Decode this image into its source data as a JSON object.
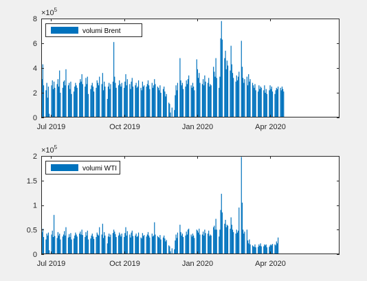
{
  "colors": {
    "figure_background": "#f0f0f0",
    "axes_background": "#ffffff",
    "bar": "#0072bd",
    "axis": "#262626"
  },
  "chart_data": [
    {
      "type": "bar",
      "legend": [
        "volumi Brent"
      ],
      "legend_location": "top-left",
      "y_exponent_label": "×10",
      "y_exponent_power": "5",
      "ylim": [
        0,
        8
      ],
      "yticks": [
        0,
        2,
        4,
        6,
        8
      ],
      "ytick_labels": [
        "0",
        "2",
        "4",
        "6",
        "8"
      ],
      "xlim": [
        "2019-06-19",
        "2020-06-27"
      ],
      "xticks": [
        "2019-07-01",
        "2019-10-01",
        "2020-01-01",
        "2020-04-01"
      ],
      "xtick_labels": [
        "Jul 2019",
        "Oct 2019",
        "Jan 2020",
        "Apr 2020"
      ],
      "grid": false,
      "series": [
        {
          "x_start": "2019-06-20",
          "x_step_days": 1,
          "values": [
            3.1,
            4.3,
            2.6,
            0,
            0,
            2.2,
            2.8,
            1.6,
            2.5,
            0.3,
            0,
            0,
            2.6,
            3.0,
            2.3,
            2.9,
            2.4,
            0,
            0,
            2.7,
            3.1,
            2.5,
            3.8,
            2.0,
            0,
            0,
            2.4,
            2.9,
            3.0,
            2.6,
            3.9,
            0,
            0,
            2.6,
            2.8,
            2.3,
            2.9,
            1.9,
            0,
            0,
            2.1,
            2.5,
            2.8,
            2.6,
            2.4,
            0,
            0,
            2.8,
            3.1,
            2.9,
            3.5,
            2.7,
            0,
            0,
            2.5,
            3.2,
            2.7,
            3.3,
            1.9,
            0,
            0,
            2.3,
            2.6,
            2.8,
            2.5,
            2.1,
            0,
            0,
            2.4,
            3.0,
            2.8,
            2.6,
            3.3,
            0,
            0,
            2.7,
            3.6,
            2.2,
            2.9,
            2.5,
            0,
            0,
            1.5,
            2.5,
            2.8,
            2.3,
            2.7,
            0,
            0,
            2.9,
            6.1,
            3.3,
            2.8,
            2.4,
            0,
            0,
            2.6,
            3.0,
            2.7,
            2.5,
            2.8,
            0,
            0,
            2.4,
            2.9,
            3.5,
            2.6,
            3.1,
            0,
            0,
            2.7,
            2.3,
            2.9,
            3.2,
            2.5,
            0,
            0,
            2.6,
            2.8,
            2.4,
            2.5,
            3.0,
            0,
            0,
            2.4,
            2.2,
            2.9,
            2.5,
            2.6,
            0,
            0,
            2.5,
            2.7,
            3.0,
            2.6,
            2.3,
            0,
            0,
            2.8,
            2.4,
            2.6,
            3.1,
            2.7,
            0,
            0,
            2.5,
            2.4,
            2.2,
            2.6,
            2.0,
            0,
            0,
            2.3,
            2.5,
            2.1,
            1.7,
            1.9,
            0,
            0,
            1.2,
            1.1,
            0.4,
            0,
            0.8,
            0,
            0,
            0.6,
            1.8,
            2.6,
            2.2,
            2.8,
            0,
            0,
            4.8,
            3.0,
            2.6,
            2.8,
            2.3,
            0,
            0,
            2.5,
            3.0,
            2.7,
            3.1,
            3.4,
            0,
            0,
            2.6,
            2.4,
            2.8,
            2.5,
            2.2,
            0,
            0,
            4.7,
            3.9,
            3.2,
            3.6,
            2.8,
            0,
            0,
            2.7,
            3.1,
            2.6,
            3.4,
            2.9,
            0,
            0,
            2.8,
            3.2,
            2.5,
            2.7,
            2.6,
            0,
            0,
            4.1,
            3.7,
            3.3,
            4.8,
            3.2,
            0,
            0,
            2.4,
            3.3,
            6.4,
            7.8,
            6.3,
            0,
            0,
            4.8,
            5.4,
            3.9,
            4.6,
            4.2,
            0,
            0,
            3.8,
            5.8,
            4.3,
            3.6,
            3.2,
            0,
            0,
            2.9,
            3.4,
            3.0,
            3.3,
            3.7,
            0,
            0,
            6.2,
            4.1,
            3.2,
            2.8,
            3.1,
            0,
            0,
            3.3,
            2.6,
            3.5,
            2.9,
            3.1,
            0,
            0,
            2.8,
            2.6,
            2.4,
            2.7,
            2.2,
            0,
            0,
            2.1,
            2.6,
            2.3,
            2.5,
            2.4,
            0,
            0,
            2.2,
            2.6,
            2.0,
            2.3,
            1.9,
            0,
            0,
            2.2,
            2.6,
            2.3,
            2.5,
            2.1,
            0,
            0,
            1.9,
            2.2,
            2.4,
            2.3,
            2.5,
            0,
            0,
            2.4,
            2.2,
            2.5,
            2.3,
            2.1
          ]
        }
      ]
    },
    {
      "type": "bar",
      "legend": [
        "volumi WTI"
      ],
      "legend_location": "top-left",
      "y_exponent_label": "×10",
      "y_exponent_power": "5",
      "ylim": [
        0,
        2
      ],
      "yticks": [
        0,
        0.5,
        1,
        1.5,
        2
      ],
      "ytick_labels": [
        "0",
        "0.5",
        "1",
        "1.5",
        "2"
      ],
      "xlim": [
        "2019-06-19",
        "2020-06-27"
      ],
      "xticks": [
        "2019-07-01",
        "2019-10-01",
        "2020-01-01",
        "2020-04-01"
      ],
      "xtick_labels": [
        "Jul 2019",
        "Oct 2019",
        "Jan 2020",
        "Apr 2020"
      ],
      "grid": false,
      "series": [
        {
          "x_start": "2019-06-20",
          "x_step_days": 1,
          "values": [
            0.45,
            0.52,
            0.35,
            0,
            0,
            0.3,
            0.42,
            0.38,
            0.44,
            0.08,
            0,
            0,
            0.4,
            0.48,
            0.35,
            0.8,
            0.37,
            0,
            0,
            0.33,
            0.45,
            0.38,
            0.42,
            0.3,
            0,
            0,
            0.36,
            0.4,
            0.47,
            0.38,
            0.55,
            0,
            0,
            0.34,
            0.41,
            0.35,
            0.43,
            0.3,
            0,
            0,
            0.32,
            0.38,
            0.44,
            0.4,
            0.36,
            0,
            0,
            0.42,
            0.46,
            0.4,
            0.5,
            0.39,
            0,
            0,
            0.35,
            0.45,
            0.38,
            0.48,
            0.3,
            0,
            0,
            0.32,
            0.38,
            0.42,
            0.36,
            0.31,
            0,
            0,
            0.35,
            0.44,
            0.4,
            0.38,
            0.55,
            0,
            0,
            0.4,
            0.62,
            0.33,
            0.45,
            0.38,
            0,
            0,
            0.22,
            0.36,
            0.42,
            0.35,
            0.4,
            0,
            0,
            0.43,
            0.5,
            0.46,
            0.41,
            0.35,
            0,
            0,
            0.38,
            0.44,
            0.4,
            0.36,
            0.42,
            0,
            0,
            0.35,
            0.43,
            0.55,
            0.38,
            0.47,
            0,
            0,
            0.4,
            0.34,
            0.44,
            0.48,
            0.37,
            0,
            0,
            0.38,
            0.42,
            0.35,
            0.37,
            0.44,
            0,
            0,
            0.34,
            0.32,
            0.43,
            0.37,
            0.39,
            0,
            0,
            0.36,
            0.4,
            0.45,
            0.38,
            0.34,
            0,
            0,
            0.42,
            0.36,
            0.38,
            0.65,
            0.4,
            0,
            0,
            0.37,
            0.35,
            0.33,
            0.39,
            0.3,
            0,
            0,
            0.34,
            0.38,
            0.32,
            0.26,
            0.29,
            0,
            0,
            0.18,
            0.16,
            0.06,
            0,
            0.12,
            0,
            0,
            0.1,
            0.28,
            0.4,
            0.33,
            0.44,
            0,
            0,
            0.6,
            0.45,
            0.38,
            0.42,
            0.35,
            0,
            0,
            0.38,
            0.46,
            0.4,
            0.5,
            0.52,
            0,
            0,
            0.4,
            0.36,
            0.42,
            0.38,
            0.33,
            0,
            0,
            0.5,
            0.48,
            0.44,
            0.52,
            0.4,
            0,
            0,
            0.4,
            0.46,
            0.38,
            0.5,
            0.43,
            0,
            0,
            0.42,
            0.48,
            0.37,
            0.4,
            0.38,
            0,
            0,
            0.55,
            0.58,
            0.5,
            0.72,
            0.5,
            0,
            0,
            0.36,
            0.5,
            0.9,
            1.23,
            0.85,
            0,
            0,
            0.62,
            0.7,
            0.55,
            0.6,
            0.58,
            0,
            0,
            0.52,
            0.75,
            0.6,
            0.5,
            0.45,
            0,
            0,
            0.42,
            0.5,
            0.44,
            0.48,
            0.95,
            0,
            0,
            1.98,
            1.05,
            0.5,
            0.42,
            0.46,
            0,
            0,
            0.5,
            0.28,
            0.22,
            0.3,
            0.2,
            0,
            0,
            0.18,
            0.16,
            0.15,
            0.2,
            0.14,
            0,
            0,
            0.15,
            0.2,
            0.17,
            0.22,
            0.16,
            0,
            0,
            0.16,
            0.2,
            0.18,
            0.2,
            0.14,
            0,
            0,
            0.15,
            0.18,
            0.2,
            0.18,
            0.21,
            0,
            0,
            0.2,
            0.18,
            0.26,
            0.22,
            0.34
          ]
        }
      ]
    }
  ]
}
